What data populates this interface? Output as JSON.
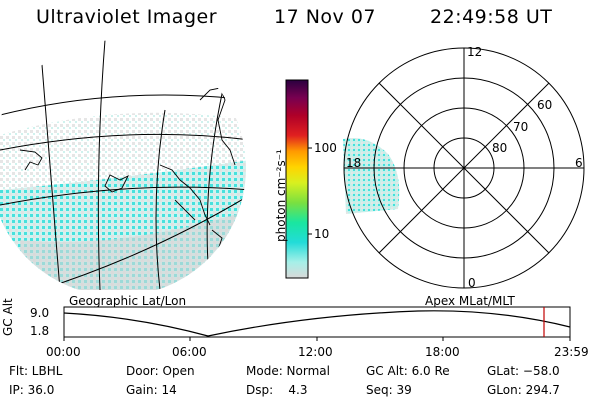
{
  "header": {
    "instrument": "Ultraviolet Imager",
    "date": "17 Nov 07",
    "time": "22:49:58 UT"
  },
  "map": {
    "label": "Geographic Lat/Lon"
  },
  "colorbar": {
    "unit_label": "photon cm⁻²s⁻¹",
    "ticks": [
      "100",
      "10"
    ],
    "colors": [
      "#d9d9d9",
      "#a6f0e8",
      "#22dcd8",
      "#19e6a0",
      "#7ae040",
      "#d8f020",
      "#ffd400",
      "#ff9a00",
      "#e02020",
      "#b00028",
      "#780050",
      "#2a0040"
    ]
  },
  "polar": {
    "label": "Apex MLat/MLT",
    "mlt_labels": [
      "12",
      "18",
      "6",
      "0"
    ],
    "lat_labels": [
      "60",
      "70",
      "80"
    ]
  },
  "timeline": {
    "axis_label": "GC Alt",
    "y_ticks": [
      "9.0",
      "1.8"
    ],
    "x_ticks": [
      "00:00",
      "06:00",
      "12:00",
      "18:00",
      "23:59"
    ],
    "marker_color": "#c00000"
  },
  "info": {
    "filter": "Flt: LBHL",
    "door": "Door: Open",
    "mode": "Mode: Normal",
    "gc_alt": "GC Alt: 6.0 Re",
    "glat": "GLat: −58.0",
    "ip": "IP: 36.0",
    "gain": "Gain: 14",
    "dsp": "Dsp:    4.3",
    "seq": "Seq: 39",
    "glon": "GLon: 294.7"
  }
}
